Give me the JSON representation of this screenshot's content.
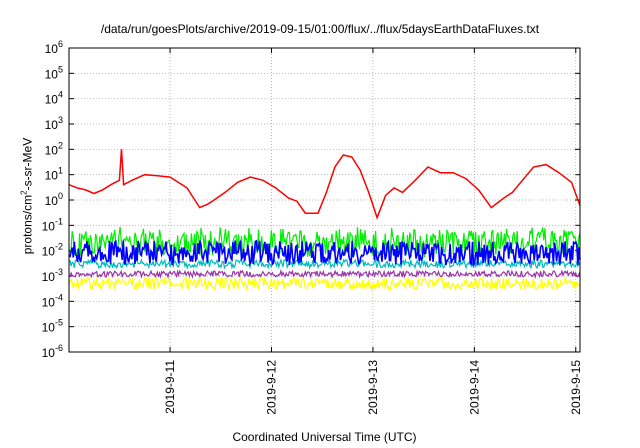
{
  "chart_data": {
    "type": "line",
    "title": "/data/run/goesPlots/archive/2019-09-15/01:00/flux/../flux/5daysEarthDataFluxes.txt",
    "xlabel": "Coordinated Universal Time (UTC)",
    "ylabel": {
      "prefix": "protons/cm",
      "sup": "2",
      "suffix": "-s-sr-MeV"
    },
    "y_scale": "log",
    "ylim": [
      1e-06,
      1000000.0
    ],
    "y_ticks": [
      {
        "exp": "-6",
        "value": 1e-06
      },
      {
        "exp": "-5",
        "value": 1e-05
      },
      {
        "exp": "-4",
        "value": 0.0001
      },
      {
        "exp": "-3",
        "value": 0.001
      },
      {
        "exp": "-2",
        "value": 0.01
      },
      {
        "exp": "-1",
        "value": 0.1
      },
      {
        "exp": "0",
        "value": 1
      },
      {
        "exp": "1",
        "value": 10
      },
      {
        "exp": "2",
        "value": 100
      },
      {
        "exp": "3",
        "value": 1000
      },
      {
        "exp": "4",
        "value": 10000
      },
      {
        "exp": "5",
        "value": 100000
      },
      {
        "exp": "6",
        "value": 1000000
      }
    ],
    "xlim": [
      "2019-09-10T00:05",
      "2019-09-15T01:00"
    ],
    "x_ticks": [
      "2019-9-11",
      "2019-9-12",
      "2019-9-13",
      "2019-9-14",
      "2019-9-15"
    ],
    "grid": true,
    "series": [
      {
        "color": "#ff0000",
        "x": [
          "2019-09-10T00:05",
          "2019-09-10T02:00",
          "2019-09-10T04:00",
          "2019-09-10T06:00",
          "2019-09-10T08:00",
          "2019-09-10T10:00",
          "2019-09-10T12:00",
          "2019-09-10T12:30",
          "2019-09-10T13:00",
          "2019-09-10T15:00",
          "2019-09-10T18:00",
          "2019-09-10T21:00",
          "2019-09-11T00:00",
          "2019-09-11T04:00",
          "2019-09-11T07:00",
          "2019-09-11T09:00",
          "2019-09-11T10:00",
          "2019-09-11T13:00",
          "2019-09-11T16:00",
          "2019-09-11T19:00",
          "2019-09-11T22:00",
          "2019-09-12T01:00",
          "2019-09-12T04:00",
          "2019-09-12T06:00",
          "2019-09-12T08:00",
          "2019-09-12T11:00",
          "2019-09-12T13:00",
          "2019-09-12T15:00",
          "2019-09-12T17:00",
          "2019-09-12T19:00",
          "2019-09-12T21:00",
          "2019-09-12T23:00",
          "2019-09-13T01:00",
          "2019-09-13T03:00",
          "2019-09-13T05:00",
          "2019-09-13T07:00",
          "2019-09-13T10:00",
          "2019-09-13T13:00",
          "2019-09-13T16:00",
          "2019-09-13T19:00",
          "2019-09-13T22:00",
          "2019-09-14T01:00",
          "2019-09-14T04:00",
          "2019-09-14T07:00",
          "2019-09-14T09:00",
          "2019-09-14T11:00",
          "2019-09-14T14:00",
          "2019-09-14T17:00",
          "2019-09-14T20:00",
          "2019-09-14T23:00",
          "2019-09-15T01:00"
        ],
        "values": [
          4,
          3,
          2.5,
          1.8,
          2.5,
          4,
          6,
          100,
          4,
          6,
          10,
          9,
          8,
          3,
          0.5,
          0.7,
          0.9,
          2,
          5,
          8,
          6,
          3,
          1.2,
          0.9,
          0.3,
          0.3,
          2,
          20,
          60,
          50,
          15,
          2,
          0.2,
          1.5,
          3,
          2,
          6,
          20,
          12,
          12,
          7,
          2.5,
          0.5,
          1.2,
          2,
          5,
          20,
          25,
          12,
          5,
          0.6
        ]
      },
      {
        "color": "#00ee00",
        "x": [
          "2019-09-10T00:05",
          "2019-09-10T12:00",
          "2019-09-11T00:00",
          "2019-09-11T12:00",
          "2019-09-12T00:00",
          "2019-09-12T12:00",
          "2019-09-13T00:00",
          "2019-09-13T12:00",
          "2019-09-14T00:00",
          "2019-09-14T12:00",
          "2019-09-15T01:00"
        ],
        "values": [
          0.02,
          0.025,
          0.02,
          0.025,
          0.02,
          0.02,
          0.025,
          0.02,
          0.02,
          0.025,
          0.02
        ]
      },
      {
        "color": "#0000ff",
        "x": [
          "2019-09-10T00:05",
          "2019-09-10T12:00",
          "2019-09-11T00:00",
          "2019-09-11T12:00",
          "2019-09-12T00:00",
          "2019-09-12T12:00",
          "2019-09-13T00:00",
          "2019-09-13T12:00",
          "2019-09-14T00:00",
          "2019-09-14T12:00",
          "2019-09-15T01:00"
        ],
        "values": [
          0.008,
          0.009,
          0.008,
          0.009,
          0.008,
          0.008,
          0.009,
          0.008,
          0.008,
          0.009,
          0.008
        ]
      },
      {
        "color": "#00bbbb",
        "x": [
          "2019-09-10T00:05",
          "2019-09-10T12:00",
          "2019-09-11T00:00",
          "2019-09-11T12:00",
          "2019-09-12T00:00",
          "2019-09-12T12:00",
          "2019-09-13T00:00",
          "2019-09-13T12:00",
          "2019-09-14T00:00",
          "2019-09-14T12:00",
          "2019-09-15T01:00"
        ],
        "values": [
          0.003,
          0.003,
          0.003,
          0.003,
          0.003,
          0.003,
          0.003,
          0.003,
          0.003,
          0.003,
          0.003
        ]
      },
      {
        "color": "#9933aa",
        "x": [
          "2019-09-10T00:05",
          "2019-09-10T12:00",
          "2019-09-11T00:00",
          "2019-09-11T12:00",
          "2019-09-12T00:00",
          "2019-09-12T12:00",
          "2019-09-13T00:00",
          "2019-09-13T12:00",
          "2019-09-14T00:00",
          "2019-09-14T12:00",
          "2019-09-15T01:00"
        ],
        "values": [
          0.0012,
          0.0012,
          0.0012,
          0.0012,
          0.0012,
          0.0012,
          0.0012,
          0.0012,
          0.0012,
          0.0012,
          0.0012
        ]
      },
      {
        "color": "#ffff00",
        "x": [
          "2019-09-10T00:05",
          "2019-09-10T12:00",
          "2019-09-11T00:00",
          "2019-09-11T12:00",
          "2019-09-12T00:00",
          "2019-09-12T12:00",
          "2019-09-13T00:00",
          "2019-09-13T12:00",
          "2019-09-14T00:00",
          "2019-09-14T12:00",
          "2019-09-15T01:00"
        ],
        "values": [
          0.0005,
          0.0005,
          0.0005,
          0.0005,
          0.0005,
          0.0005,
          0.0005,
          0.0005,
          0.0005,
          0.0005,
          0.0005
        ]
      }
    ]
  }
}
